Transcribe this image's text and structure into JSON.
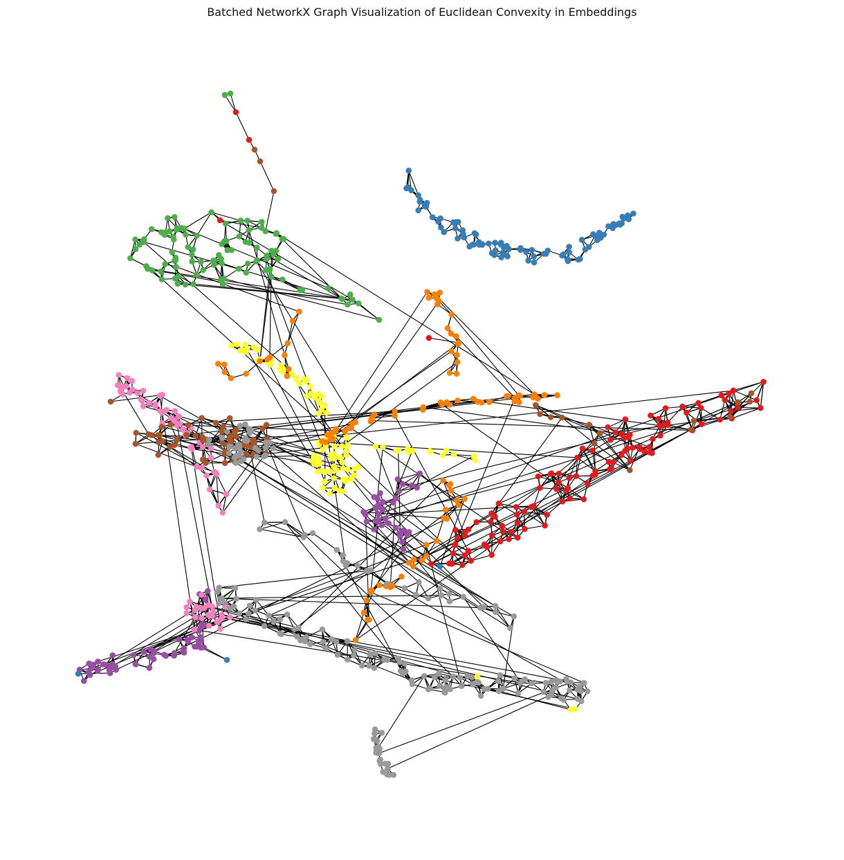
{
  "figure": {
    "title": "Batched NetworkX Graph Visualization of Euclidean Convexity in Embeddings"
  },
  "graph": {
    "edge_color": "#000000",
    "palette": {
      "blue": "#377eb8",
      "green": "#4daf4a",
      "red": "#e41a1c",
      "brown": "#a65628",
      "orange": "#ff7f00",
      "yellow": "#ffff33",
      "pink": "#f781bf",
      "gray": "#999999",
      "purple": "#984ea3"
    },
    "clusters": [
      {
        "id": "blue-arc",
        "color": "blue"
      },
      {
        "id": "green-top-left",
        "color": "green"
      },
      {
        "id": "pink-left",
        "color": "pink"
      },
      {
        "id": "brown-left",
        "color": "brown"
      },
      {
        "id": "gray-center-left",
        "color": "gray"
      },
      {
        "id": "yellow-center",
        "color": "yellow"
      },
      {
        "id": "orange-upper-band",
        "color": "orange"
      },
      {
        "id": "red-right",
        "color": "red"
      },
      {
        "id": "purple-center",
        "color": "purple"
      },
      {
        "id": "purple-bottom-left",
        "color": "purple"
      },
      {
        "id": "gray-bottom-band",
        "color": "gray"
      },
      {
        "id": "gray-bottom-tail",
        "color": "gray"
      }
    ]
  }
}
